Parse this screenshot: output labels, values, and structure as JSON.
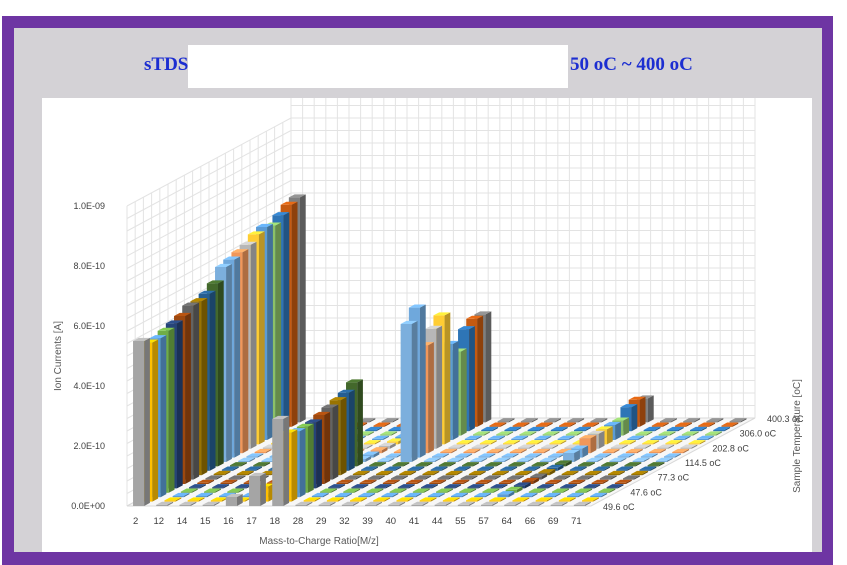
{
  "title": {
    "left": "sTDS.",
    "right": "50 oC ~ 400 oC"
  },
  "chart_data": {
    "type": "bar",
    "subtype": "3d-column",
    "xlabel": "Mass-to-Charge Ratio[M/z]",
    "ylabel": "Ion Currents [A]",
    "zlabel": "Sample Temperature [oC]",
    "ylim": [
      0,
      1e-09
    ],
    "yticks": [
      "0.0E+00",
      "2.0E-10",
      "4.0E-10",
      "6.0E-10",
      "8.0E-10",
      "1.0E-09"
    ],
    "categories": [
      "2",
      "12",
      "14",
      "15",
      "16",
      "17",
      "18",
      "28",
      "29",
      "32",
      "39",
      "40",
      "41",
      "44",
      "55",
      "57",
      "64",
      "66",
      "69",
      "71"
    ],
    "depth_labels": [
      "49.6 oC",
      "47.6 oC",
      "77.3 oC",
      "114.5 oC",
      "202.8 oC",
      "306.0 oC",
      "400.3 oC"
    ],
    "series": [
      {
        "color": "#a5a5a5",
        "values": [
          5.5e-10,
          0,
          0,
          0,
          3e-11,
          1e-10,
          2.9e-10,
          0,
          0,
          0,
          0,
          0,
          0,
          0,
          0,
          0,
          0,
          0,
          0,
          0
        ]
      },
      {
        "color": "#ffc000",
        "values": [
          5.3e-10,
          0,
          0,
          0,
          0,
          5e-11,
          2.3e-10,
          0,
          0,
          0,
          0,
          0,
          0,
          0,
          0,
          0,
          0,
          0,
          0,
          0
        ]
      },
      {
        "color": "#5b9bd5",
        "values": [
          5.3e-10,
          0,
          0,
          0,
          0,
          1e-11,
          2.2e-10,
          0,
          0,
          0,
          0,
          0,
          0,
          0,
          0,
          1e-11,
          0,
          0,
          0,
          0
        ]
      },
      {
        "color": "#70ad47",
        "values": [
          5.4e-10,
          0,
          0,
          0,
          0,
          0,
          2.2e-10,
          0,
          0,
          0,
          0,
          0,
          0,
          0,
          0,
          1e-11,
          0,
          0,
          0,
          0
        ]
      },
      {
        "color": "#264478",
        "values": [
          5.5e-10,
          0,
          0,
          0,
          0,
          0,
          2.2e-10,
          0,
          0,
          0,
          0,
          0,
          0,
          0,
          0,
          1e-11,
          0,
          0,
          0,
          0
        ]
      },
      {
        "color": "#9e480e",
        "values": [
          5.6e-10,
          0,
          0,
          0,
          0,
          0,
          2.3e-10,
          0,
          0,
          0,
          0,
          0,
          0,
          0,
          0,
          1e-11,
          0,
          0,
          0,
          0
        ]
      },
      {
        "color": "#636363",
        "values": [
          5.8e-10,
          0,
          0,
          0,
          0,
          0,
          2.4e-10,
          0,
          0,
          0,
          0,
          0,
          0,
          0,
          0,
          1e-11,
          0,
          0,
          0,
          0
        ]
      },
      {
        "color": "#997300",
        "values": [
          5.8e-10,
          0,
          0,
          0,
          0,
          0,
          2.5e-10,
          0,
          0,
          0,
          0,
          0,
          0,
          0,
          0,
          1e-11,
          0,
          0,
          0,
          0
        ]
      },
      {
        "color": "#255e91",
        "values": [
          5.9e-10,
          0,
          0,
          0,
          0,
          0,
          2.6e-10,
          0,
          0,
          0,
          0,
          0,
          0,
          0,
          0,
          1e-11,
          0,
          0,
          0,
          0
        ]
      },
      {
        "color": "#43682b",
        "values": [
          6.1e-10,
          0,
          0,
          0,
          0,
          0,
          2.8e-10,
          0,
          0,
          0,
          0,
          0,
          0,
          0,
          0,
          1e-11,
          0,
          0,
          0,
          0
        ]
      },
      {
        "color": "#7cafdd",
        "values": [
          6.5e-10,
          0,
          0,
          0,
          0,
          0,
          1e-11,
          0,
          4.6e-10,
          0,
          0,
          0,
          0,
          0,
          0,
          3e-11,
          0,
          0,
          0,
          0
        ]
      },
      {
        "color": "#6fa8dc",
        "values": [
          6.6e-10,
          0,
          0,
          0,
          0,
          0,
          1e-11,
          0,
          5e-10,
          0,
          0,
          0,
          0,
          0,
          0,
          3e-11,
          0,
          0,
          0,
          0
        ]
      },
      {
        "color": "#f1975a",
        "values": [
          6.7e-10,
          0,
          0,
          0,
          0,
          0,
          1e-11,
          0,
          3.6e-10,
          0,
          0,
          0,
          0,
          0,
          0,
          5e-11,
          0,
          0,
          0,
          0
        ]
      },
      {
        "color": "#b7b7b7",
        "values": [
          6.8e-10,
          0,
          0,
          0,
          0,
          0,
          1e-11,
          0,
          4e-10,
          0,
          0,
          0,
          0,
          0,
          0,
          5e-11,
          0,
          0,
          0,
          0
        ]
      },
      {
        "color": "#ffcd33",
        "values": [
          7e-10,
          0,
          0,
          0,
          0,
          0,
          1e-11,
          0,
          4.3e-10,
          0,
          0,
          0,
          0,
          0,
          0,
          5e-11,
          0,
          0,
          0,
          0
        ]
      },
      {
        "color": "#5b9bd5",
        "values": [
          7.1e-10,
          0,
          0,
          0,
          0,
          0,
          1e-11,
          2e-11,
          3.2e-10,
          0,
          0,
          0,
          0,
          0,
          0,
          5e-11,
          0,
          0,
          0,
          0
        ]
      },
      {
        "color": "#8cc168",
        "values": [
          7e-10,
          0,
          0,
          0,
          0,
          0,
          1e-11,
          3e-11,
          2.8e-10,
          0,
          0,
          0,
          0,
          0,
          0,
          5e-11,
          0,
          0,
          0,
          0
        ]
      },
      {
        "color": "#2e75b6",
        "values": [
          7.2e-10,
          0,
          0,
          0,
          0,
          0,
          1e-11,
          4e-11,
          3.4e-10,
          0,
          0,
          0,
          0,
          0,
          0,
          8e-11,
          0,
          0,
          0,
          0
        ]
      },
      {
        "color": "#c55a11",
        "values": [
          7.4e-10,
          0,
          0,
          0,
          0,
          0,
          1e-11,
          4e-11,
          3.6e-10,
          0,
          0,
          0,
          0,
          0,
          0,
          9e-11,
          0,
          0,
          0,
          0
        ]
      },
      {
        "color": "#7f7f7f",
        "values": [
          7.5e-10,
          0,
          0,
          0,
          0,
          0,
          1e-11,
          3e-11,
          3.6e-10,
          0,
          0,
          0,
          0,
          0,
          0,
          8e-11,
          0,
          0,
          0,
          0
        ]
      }
    ]
  }
}
